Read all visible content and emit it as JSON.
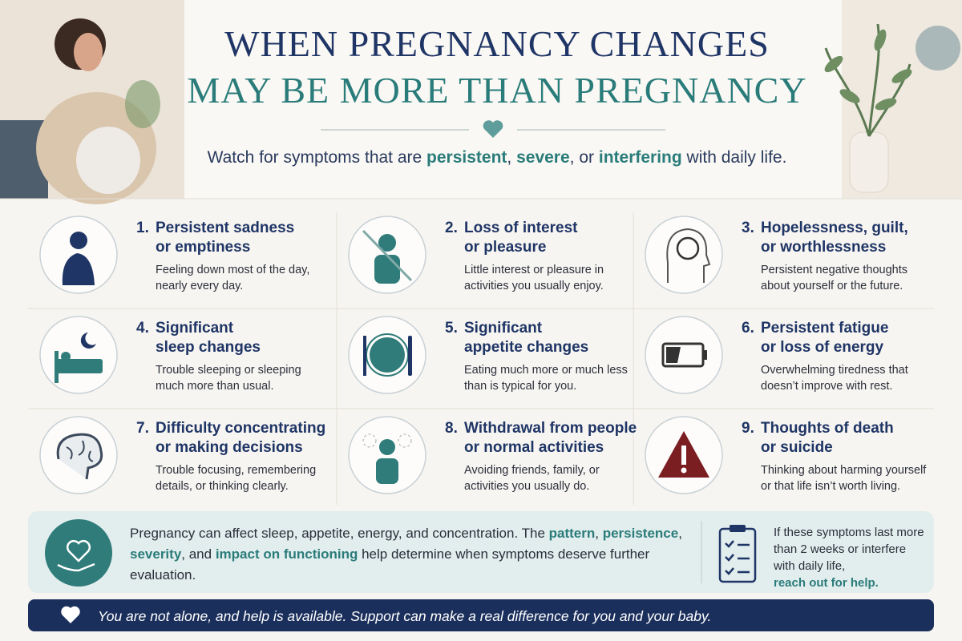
{
  "header": {
    "title_lines": [
      "WHEN PREGNANCY CHANGES",
      "MAY BE MORE THAN PREGNANCY"
    ],
    "subtitle_parts": [
      "Watch for symptoms that are ",
      "persistent",
      ", ",
      "severe",
      ", or ",
      "interfering",
      " with daily life."
    ]
  },
  "symptoms": [
    {
      "number": "1.",
      "title_lines": [
        "Persistent sadness",
        "or emptiness"
      ],
      "description_lines": [
        "Feeling down most of the day,",
        "nearly every day."
      ]
    },
    {
      "number": "2.",
      "title_lines": [
        "Loss of interest",
        "or pleasure"
      ],
      "description_lines": [
        "Little interest or pleasure in",
        "activities you usually enjoy."
      ]
    },
    {
      "number": "3.",
      "title_lines": [
        "Hopelessness, guilt,",
        "or worthlessness"
      ],
      "description_lines": [
        "Persistent negative thoughts",
        "about yourself or the future."
      ]
    },
    {
      "number": "4.",
      "title_lines": [
        "Significant",
        "sleep changes"
      ],
      "description_lines": [
        "Trouble sleeping or sleeping",
        "much more than usual."
      ]
    },
    {
      "number": "5.",
      "title_lines": [
        "Significant",
        "appetite changes"
      ],
      "description_lines": [
        "Eating much more or much less",
        "than is typical for you."
      ]
    },
    {
      "number": "6.",
      "title_lines": [
        "Persistent fatigue",
        "or loss of energy"
      ],
      "description_lines": [
        "Overwhelming tiredness that",
        "doesn’t improve with rest."
      ]
    },
    {
      "number": "7.",
      "title_lines": [
        "Difficulty concentrating",
        "or making decisions"
      ],
      "description_lines": [
        "Trouble focusing, remembering",
        "details, or thinking clearly."
      ]
    },
    {
      "number": "8.",
      "title_lines": [
        "Withdrawal from people",
        "or normal activities"
      ],
      "description_lines": [
        "Avoiding friends, family, or",
        "activities you usually do."
      ]
    },
    {
      "number": "9.",
      "title_lines": [
        "Thoughts of death",
        "or suicide"
      ],
      "description_lines": [
        "Thinking about harming yourself",
        "or that life isn’t worth living."
      ]
    }
  ],
  "note": {
    "parts": [
      "Pregnancy can affect sleep, appetite, energy, and concentration. The ",
      "pattern",
      ", ",
      "persistence",
      ", ",
      "severity",
      ", and ",
      "impact on functioning",
      " help determine when symptoms deserve further evaluation."
    ]
  },
  "callout": {
    "text": "If these symptoms last more than 2 weeks or interfere with daily life,",
    "action": "reach out for help."
  },
  "footer": {
    "text": "You are not alone, and help is available. Support can make a real difference for you and your baby."
  }
}
